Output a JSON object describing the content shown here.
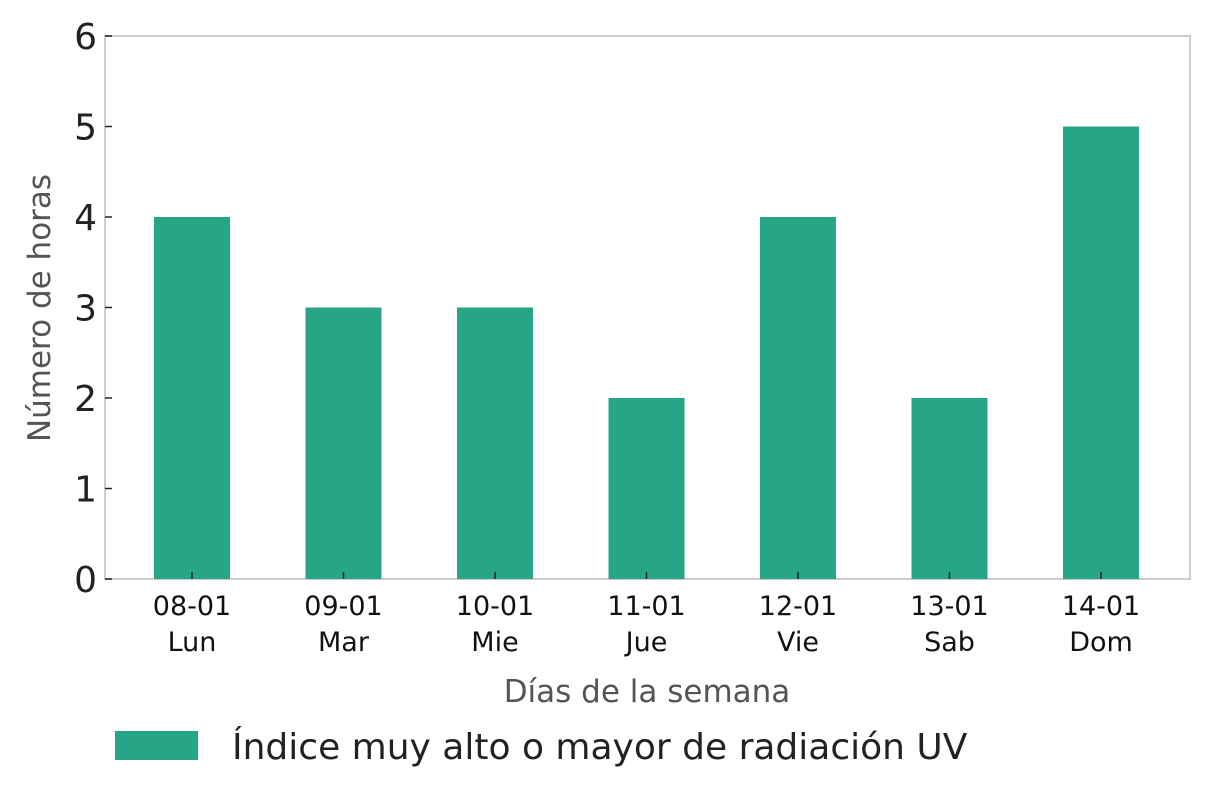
{
  "chart_data": {
    "type": "bar",
    "categories": [
      [
        "08-01",
        "Lun"
      ],
      [
        "09-01",
        "Mar"
      ],
      [
        "10-01",
        "Mie"
      ],
      [
        "11-01",
        "Jue"
      ],
      [
        "12-01",
        "Vie"
      ],
      [
        "13-01",
        "Sab"
      ],
      [
        "14-01",
        "Dom"
      ]
    ],
    "series": [
      {
        "name": "Índice muy alto o mayor de radiación UV",
        "values": [
          4,
          3,
          3,
          2,
          4,
          2,
          5
        ],
        "color": "#27a687"
      }
    ],
    "xlabel": "Días de la semana",
    "ylabel": "Número de horas",
    "ylim": [
      0,
      6
    ],
    "yticks": [
      0,
      1,
      2,
      3,
      4,
      5,
      6
    ],
    "grid": false,
    "legend_position": "bottom"
  }
}
